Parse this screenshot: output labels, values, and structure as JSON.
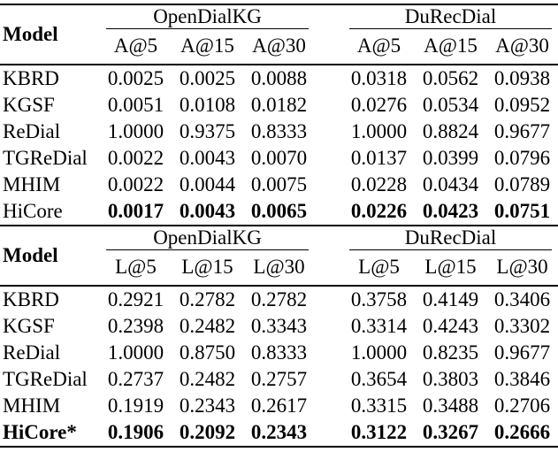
{
  "page": {
    "background": "#ffffff",
    "text_color": "#000000",
    "rule_color": "#000000"
  },
  "tables": [
    {
      "model_header": "Model",
      "groups": [
        {
          "label": "OpenDialKG",
          "metrics": [
            "A@5",
            "A@15",
            "A@30"
          ]
        },
        {
          "label": "DuRecDial",
          "metrics": [
            "A@5",
            "A@15",
            "A@30"
          ]
        }
      ],
      "rows": [
        {
          "model": "KBRD",
          "bold_model": false,
          "bold_values": false,
          "values": [
            "0.0025",
            "0.0025",
            "0.0088",
            "0.0318",
            "0.0562",
            "0.0938"
          ]
        },
        {
          "model": "KGSF",
          "bold_model": false,
          "bold_values": false,
          "values": [
            "0.0051",
            "0.0108",
            "0.0182",
            "0.0276",
            "0.0534",
            "0.0952"
          ]
        },
        {
          "model": "ReDial",
          "bold_model": false,
          "bold_values": false,
          "values": [
            "1.0000",
            "0.9375",
            "0.8333",
            "1.0000",
            "0.8824",
            "0.9677"
          ]
        },
        {
          "model": "TGReDial",
          "bold_model": false,
          "bold_values": false,
          "values": [
            "0.0022",
            "0.0043",
            "0.0070",
            "0.0137",
            "0.0399",
            "0.0796"
          ]
        },
        {
          "model": "MHIM",
          "bold_model": false,
          "bold_values": false,
          "values": [
            "0.0022",
            "0.0044",
            "0.0075",
            "0.0228",
            "0.0434",
            "0.0789"
          ]
        },
        {
          "model": "HiCore",
          "bold_model": false,
          "bold_values": true,
          "values": [
            "0.0017",
            "0.0043",
            "0.0065",
            "0.0226",
            "0.0423",
            "0.0751"
          ]
        }
      ]
    },
    {
      "model_header": "Model",
      "groups": [
        {
          "label": "OpenDialKG",
          "metrics": [
            "L@5",
            "L@15",
            "L@30"
          ]
        },
        {
          "label": "DuRecDial",
          "metrics": [
            "L@5",
            "L@15",
            "L@30"
          ]
        }
      ],
      "rows": [
        {
          "model": "KBRD",
          "bold_model": false,
          "bold_values": false,
          "values": [
            "0.2921",
            "0.2782",
            "0.2782",
            "0.3758",
            "0.4149",
            "0.3406"
          ]
        },
        {
          "model": "KGSF",
          "bold_model": false,
          "bold_values": false,
          "values": [
            "0.2398",
            "0.2482",
            "0.3343",
            "0.3314",
            "0.4243",
            "0.3302"
          ]
        },
        {
          "model": "ReDial",
          "bold_model": false,
          "bold_values": false,
          "values": [
            "1.0000",
            "0.8750",
            "0.8333",
            "1.0000",
            "0.8235",
            "0.9677"
          ]
        },
        {
          "model": "TGReDial",
          "bold_model": false,
          "bold_values": false,
          "values": [
            "0.2737",
            "0.2482",
            "0.2757",
            "0.3654",
            "0.3803",
            "0.3846"
          ]
        },
        {
          "model": "MHIM",
          "bold_model": false,
          "bold_values": false,
          "values": [
            "0.1919",
            "0.2343",
            "0.2617",
            "0.3315",
            "0.3488",
            "0.2706"
          ]
        },
        {
          "model": "HiCore*",
          "bold_model": true,
          "bold_values": true,
          "values": [
            "0.1906",
            "0.2092",
            "0.2343",
            "0.3122",
            "0.3267",
            "0.2666"
          ]
        }
      ]
    }
  ]
}
